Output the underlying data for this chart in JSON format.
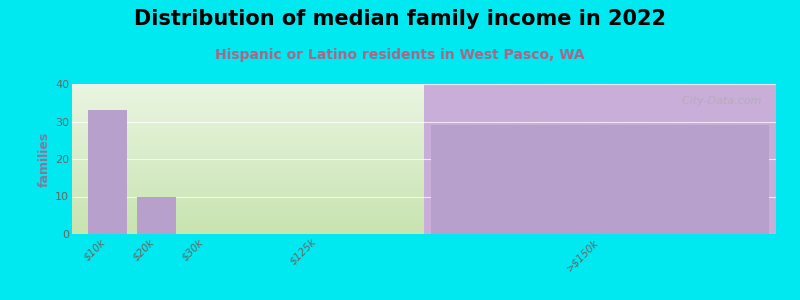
{
  "title": "Distribution of median family income in 2022",
  "subtitle": "Hispanic or Latino residents in West Pasco, WA",
  "categories": [
    "$10k",
    "$20k",
    "$30k",
    "$125k",
    ">$150k"
  ],
  "values": [
    33,
    10,
    0,
    0,
    29
  ],
  "bar_color": "#b8a0cc",
  "bg_color": "#00e8f0",
  "plot_bg_left_top": "#e8f2e0",
  "plot_bg_left_bottom": "#d8ecc8",
  "plot_bg_right": "#c8aed8",
  "ylabel": "families",
  "ylim": [
    0,
    40
  ],
  "yticks": [
    0,
    10,
    20,
    30,
    40
  ],
  "title_fontsize": 15,
  "subtitle_fontsize": 10,
  "subtitle_color": "#aa6688",
  "watermark": "City-Data.com",
  "ylabel_color": "#887799"
}
